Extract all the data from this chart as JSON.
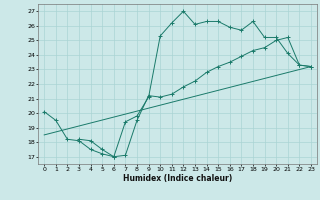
{
  "xlabel": "Humidex (Indice chaleur)",
  "bg_color": "#cce8e8",
  "line_color": "#1a7a6a",
  "grid_color": "#aad4d4",
  "xlim": [
    -0.5,
    23.5
  ],
  "ylim": [
    16.5,
    27.5
  ],
  "xticks": [
    0,
    1,
    2,
    3,
    4,
    5,
    6,
    7,
    8,
    9,
    10,
    11,
    12,
    13,
    14,
    15,
    16,
    17,
    18,
    19,
    20,
    21,
    22,
    23
  ],
  "yticks": [
    17,
    18,
    19,
    20,
    21,
    22,
    23,
    24,
    25,
    26,
    27
  ],
  "line1_x": [
    0,
    1,
    2,
    3,
    4,
    5,
    6,
    7,
    8,
    9,
    10,
    11,
    12,
    13,
    14,
    15,
    16,
    17,
    18,
    19,
    20,
    21,
    22,
    23
  ],
  "line1_y": [
    20.1,
    19.5,
    18.2,
    18.1,
    17.5,
    17.2,
    17.0,
    19.4,
    19.8,
    21.1,
    25.3,
    26.2,
    27.0,
    26.1,
    26.3,
    26.3,
    25.9,
    25.7,
    26.3,
    25.2,
    25.2,
    24.1,
    23.3,
    23.2
  ],
  "line2_x": [
    3,
    4,
    5,
    6,
    7,
    8,
    9,
    10,
    11,
    12,
    13,
    14,
    15,
    16,
    17,
    18,
    19,
    20,
    21,
    22,
    23
  ],
  "line2_y": [
    18.2,
    18.1,
    17.5,
    17.0,
    17.1,
    19.5,
    21.2,
    21.1,
    21.3,
    21.8,
    22.2,
    22.8,
    23.2,
    23.5,
    23.9,
    24.3,
    24.5,
    25.0,
    25.2,
    23.3,
    23.2
  ],
  "line3_x": [
    0,
    23
  ],
  "line3_y": [
    18.5,
    23.2
  ]
}
